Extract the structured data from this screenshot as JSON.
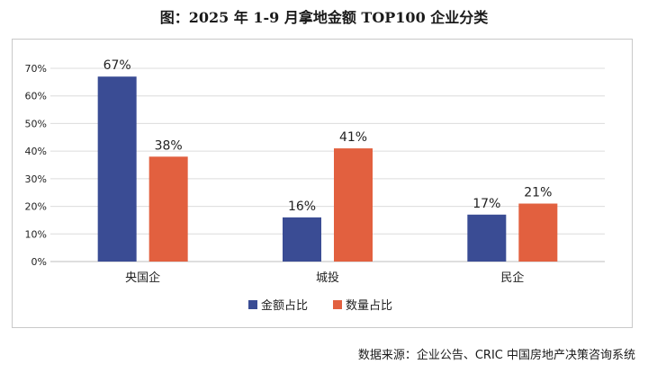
{
  "chart_data": {
    "type": "bar",
    "title": "图：2025 年 1-9 月拿地金额 TOP100 企业分类",
    "categories": [
      "央国企",
      "城投",
      "民企"
    ],
    "series": [
      {
        "name": "金额占比",
        "values": [
          67,
          16,
          17
        ],
        "labels": [
          "67%",
          "16%",
          "17%"
        ],
        "color": "#3a4c94"
      },
      {
        "name": "数量占比",
        "values": [
          38,
          41,
          21
        ],
        "labels": [
          "38%",
          "41%",
          "21%"
        ],
        "color": "#e2603f"
      }
    ],
    "yticks": [
      "0%",
      "10%",
      "20%",
      "30%",
      "40%",
      "50%",
      "60%",
      "70%"
    ],
    "ylim": [
      0,
      70
    ],
    "xlabel": "",
    "ylabel": "",
    "grid": true,
    "legend": "bottom"
  },
  "source": "数据来源：企业公告、CRIC 中国房地产决策咨询系统"
}
